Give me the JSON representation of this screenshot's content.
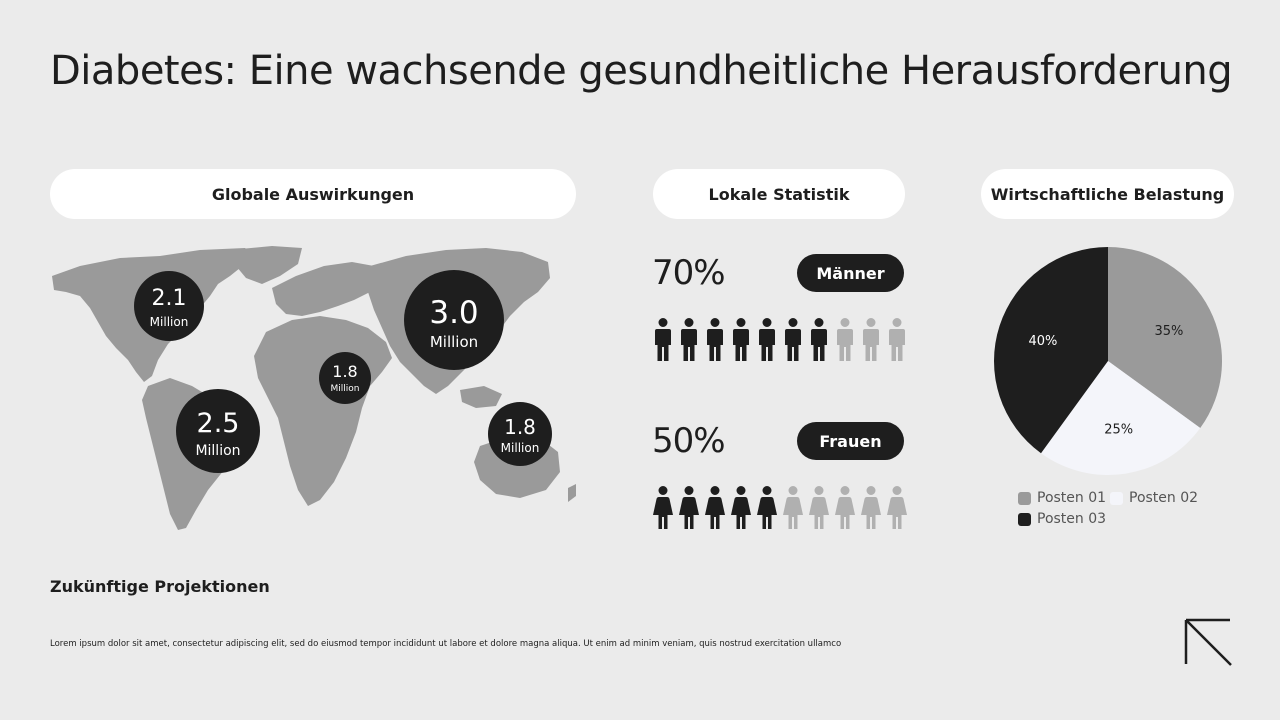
{
  "title": "Diabetes: Eine wachsende gesundheitliche Herausforderung",
  "sections": {
    "global": "Globale Auswirkungen",
    "local": "Lokale Statistik",
    "economic": "Wirtschaftliche Belastung"
  },
  "colors": {
    "background": "#ebebeb",
    "dark": "#1e1e1e",
    "map_gray": "#9a9a9a",
    "light_gray": "#b0b0b0",
    "white_slice": "#f4f5fa"
  },
  "map_bubbles": [
    {
      "value": "2.1",
      "unit": "Million"
    },
    {
      "value": "2.5",
      "unit": "Million"
    },
    {
      "value": "1.8",
      "unit": "Million"
    },
    {
      "value": "3.0",
      "unit": "Million"
    },
    {
      "value": "1.8",
      "unit": "Million"
    }
  ],
  "local": {
    "men": {
      "percent": "70%",
      "label": "Männer",
      "filled": 7,
      "total": 10
    },
    "women": {
      "percent": "50%",
      "label": "Frauen",
      "filled": 5,
      "total": 10
    }
  },
  "chart_data": {
    "type": "pie",
    "slices": [
      {
        "name": "Posten 01",
        "value": 35,
        "label": "35%",
        "color": "#9a9a9a"
      },
      {
        "name": "Posten 02",
        "value": 25,
        "label": "25%",
        "color": "#f4f5fa"
      },
      {
        "name": "Posten 03",
        "value": 40,
        "label": "40%",
        "color": "#1e1e1e"
      }
    ],
    "legend_position": "bottom"
  },
  "projections": {
    "heading": "Zukünftige Projektionen",
    "body": "Lorem ipsum dolor sit amet, consectetur adipiscing elit, sed do eiusmod tempor incididunt ut labore et dolore magna aliqua. Ut enim ad minim veniam, quis nostrud exercitation ullamco"
  },
  "icons": {
    "corner": "arrow-up-left-icon",
    "man": "man-icon",
    "woman": "woman-icon"
  }
}
